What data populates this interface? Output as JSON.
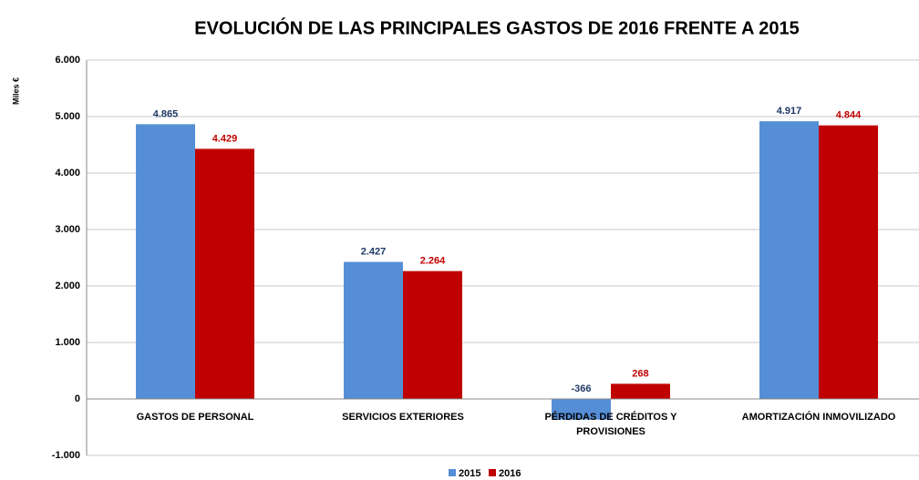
{
  "chart_data": {
    "type": "bar",
    "title": "EVOLUCIÓN DE LAS PRINCIPALES GASTOS DE 2016  FRENTE A 2015",
    "y_label": "Miles €",
    "categories": [
      "GASTOS DE PERSONAL",
      "SERVICIOS EXTERIORES",
      "PÉRDIDAS DE CRÉDITOS Y PROVISIONES",
      "AMORTIZACIÓN INMOVILIZADO"
    ],
    "series": [
      {
        "name": "2015",
        "color": "#558ed5",
        "values": [
          4865,
          2427,
          -366,
          4917
        ],
        "value_labels": [
          "4.865",
          "2.427",
          "-366",
          "4.917"
        ]
      },
      {
        "name": "2016",
        "color": "#c00000",
        "values": [
          4429,
          2264,
          268,
          4844
        ],
        "value_labels": [
          "4.429",
          "2.264",
          "268",
          "4.844"
        ]
      }
    ],
    "ylim": [
      -1000,
      6000
    ],
    "yticks": [
      {
        "value": -1000,
        "label": "-1.000"
      },
      0,
      {
        "value": 1000,
        "label": "1.000"
      },
      {
        "value": 2000,
        "label": "2.000"
      },
      {
        "value": 3000,
        "label": "3.000"
      },
      {
        "value": 4000,
        "label": "4.000"
      },
      {
        "value": 5000,
        "label": "5.000"
      },
      {
        "value": 6000,
        "label": "6.000"
      }
    ],
    "grid": true,
    "legend": "bottom"
  }
}
